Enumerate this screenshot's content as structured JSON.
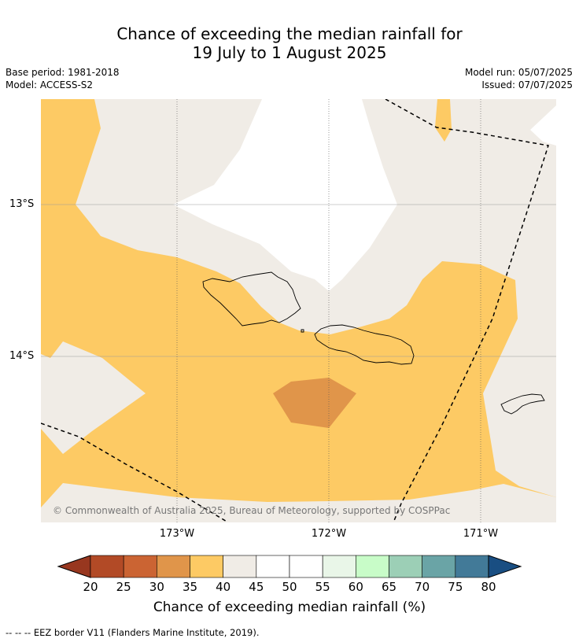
{
  "title": {
    "line1": "Chance of exceeding the median rainfall for",
    "line2": "19 July to 1 August 2025"
  },
  "info": {
    "base_period": "Base period: 1981-2018",
    "model": "Model: ACCESS-S2",
    "model_run": "Model run: 05/07/2025",
    "issued": "Issued: 07/07/2025"
  },
  "map": {
    "lat_labels": [
      "13°S",
      "14°S"
    ],
    "lon_labels": [
      "173°W",
      "172°W",
      "171°W"
    ],
    "copyright": "© Commonwealth of Australia 2025, Bureau of Meteorology, supported by COSPPac"
  },
  "colorbar": {
    "ticks": [
      "20",
      "25",
      "30",
      "35",
      "40",
      "45",
      "50",
      "55",
      "60",
      "65",
      "70",
      "75",
      "80"
    ],
    "colors": [
      "#b24a26",
      "#cb6433",
      "#e0954a",
      "#fdca64",
      "#f0ece6",
      "#ffffff",
      "#ffffff",
      "#e9f6e8",
      "#c8fcc8",
      "#9ccfb6",
      "#6aa4a6",
      "#427a98"
    ],
    "low_color": "#98371f",
    "high_color": "#194e82",
    "label": "Chance of exceeding median rainfall (%)"
  },
  "legend_note": "--  --  -- EEZ border V11 (Flanders Marine Institute, 2019)."
}
